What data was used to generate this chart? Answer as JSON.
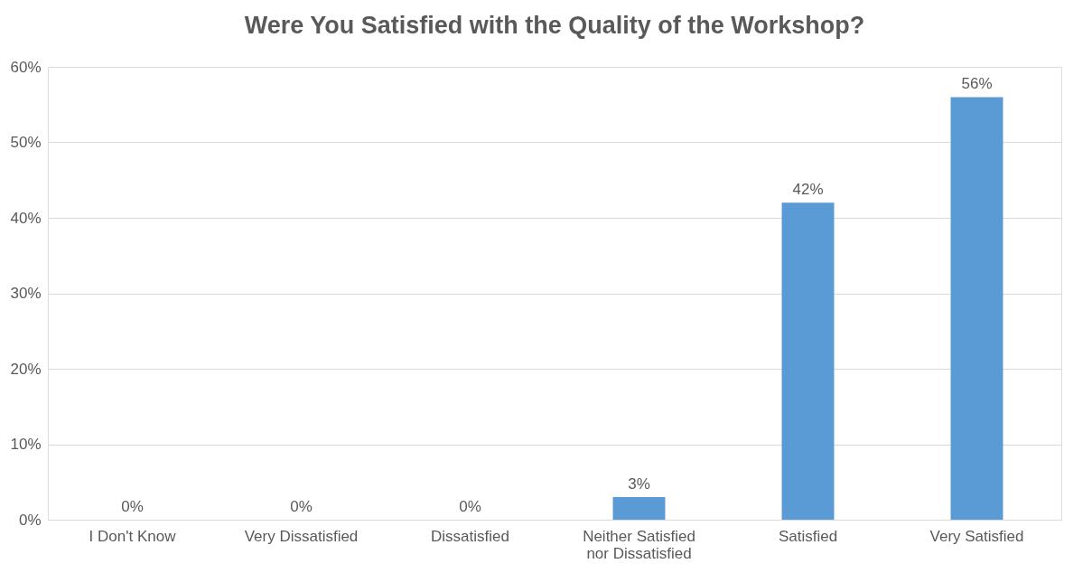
{
  "chart_data": {
    "type": "bar",
    "title": "Were You Satisfied with the Quality of the Workshop?",
    "categories": [
      "I Don't Know",
      "Very Dissatisfied",
      "Dissatisfied",
      "Neither Satisfied nor Dissatisfied",
      "Satisfied",
      "Very Satisfied"
    ],
    "values": [
      0,
      0,
      0,
      3,
      42,
      56
    ],
    "value_labels": [
      "0%",
      "0%",
      "0%",
      "3%",
      "42%",
      "56%"
    ],
    "color": "#5b9bd5",
    "ylim": [
      0,
      60
    ],
    "yticks": [
      {
        "value": 0,
        "label": "0%"
      },
      {
        "value": 10,
        "label": "10%"
      },
      {
        "value": 20,
        "label": "20%"
      },
      {
        "value": 30,
        "label": "30%"
      },
      {
        "value": 40,
        "label": "40%"
      },
      {
        "value": 50,
        "label": "50%"
      },
      {
        "value": 60,
        "label": "60%"
      }
    ],
    "grid": "y"
  }
}
